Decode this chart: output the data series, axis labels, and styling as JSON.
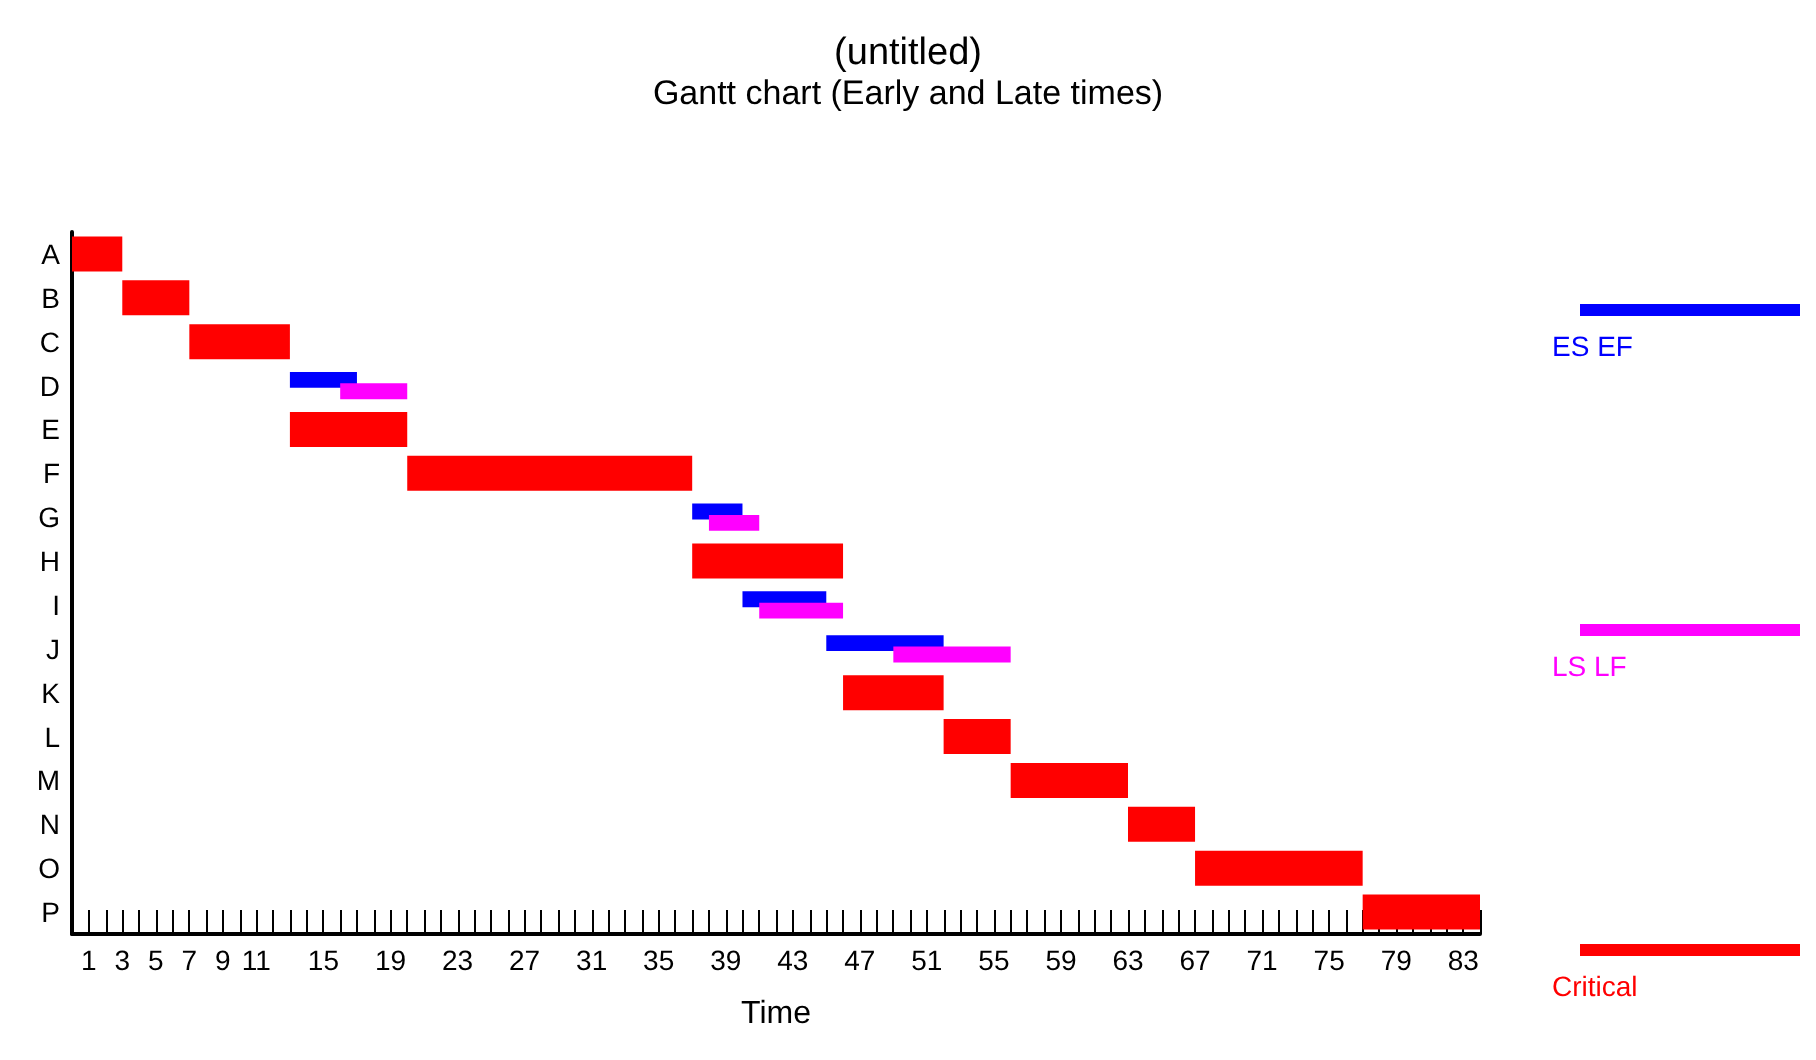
{
  "chart_data": {
    "type": "bar",
    "orientation": "horizontal",
    "title": "(untitled)",
    "subtitle": "Gantt chart (Early and Late times)",
    "xlabel": "Time",
    "categories": [
      "A",
      "B",
      "C",
      "D",
      "E",
      "F",
      "G",
      "H",
      "I",
      "J",
      "K",
      "L",
      "M",
      "N",
      "O",
      "P"
    ],
    "series": [
      {
        "name": "ES EF",
        "color": "#0000ff",
        "base": [
          null,
          null,
          null,
          13,
          null,
          null,
          37,
          null,
          40,
          45,
          null,
          null,
          null,
          null,
          null,
          null
        ],
        "values": [
          null,
          null,
          null,
          4,
          null,
          null,
          3,
          null,
          5,
          7,
          null,
          null,
          null,
          null,
          null,
          null
        ]
      },
      {
        "name": "LS LF",
        "color": "#ff00ff",
        "base": [
          null,
          null,
          null,
          16,
          null,
          null,
          38,
          null,
          41,
          49,
          null,
          null,
          null,
          null,
          null,
          null
        ],
        "values": [
          null,
          null,
          null,
          4,
          null,
          null,
          3,
          null,
          5,
          7,
          null,
          null,
          null,
          null,
          null,
          null
        ]
      },
      {
        "name": "Critical",
        "color": "#ff0000",
        "base": [
          0,
          3,
          7,
          null,
          13,
          20,
          null,
          37,
          null,
          null,
          46,
          52,
          56,
          63,
          67,
          77
        ],
        "values": [
          3,
          4,
          6,
          null,
          7,
          17,
          null,
          9,
          null,
          null,
          6,
          4,
          7,
          4,
          10,
          7
        ]
      }
    ],
    "xlim": [
      0,
      84
    ],
    "xticks": [
      1,
      {
        "value": 2,
        "label": null
      },
      3,
      {
        "value": 4,
        "label": null
      },
      5,
      {
        "value": 6,
        "label": null
      },
      7,
      {
        "value": 8,
        "label": null
      },
      9,
      {
        "value": 10,
        "label": null
      },
      11,
      {
        "value": 12,
        "label": null
      },
      {
        "value": 13,
        "label": null
      },
      {
        "value": 14,
        "label": null
      },
      15,
      {
        "value": 16,
        "label": null
      },
      {
        "value": 17,
        "label": null
      },
      {
        "value": 18,
        "label": null
      },
      19,
      {
        "value": 20,
        "label": null
      },
      {
        "value": 21,
        "label": null
      },
      {
        "value": 22,
        "label": null
      },
      23,
      {
        "value": 24,
        "label": null
      },
      {
        "value": 25,
        "label": null
      },
      {
        "value": 26,
        "label": null
      },
      27,
      {
        "value": 28,
        "label": null
      },
      {
        "value": 29,
        "label": null
      },
      {
        "value": 30,
        "label": null
      },
      31,
      {
        "value": 32,
        "label": null
      },
      {
        "value": 33,
        "label": null
      },
      {
        "value": 34,
        "label": null
      },
      35,
      {
        "value": 36,
        "label": null
      },
      {
        "value": 37,
        "label": null
      },
      {
        "value": 38,
        "label": null
      },
      39,
      {
        "value": 40,
        "label": null
      },
      {
        "value": 41,
        "label": null
      },
      {
        "value": 42,
        "label": null
      },
      43,
      {
        "value": 44,
        "label": null
      },
      {
        "value": 45,
        "label": null
      },
      {
        "value": 46,
        "label": null
      },
      47,
      {
        "value": 48,
        "label": null
      },
      {
        "value": 49,
        "label": null
      },
      {
        "value": 50,
        "label": null
      },
      51,
      {
        "value": 52,
        "label": null
      },
      {
        "value": 53,
        "label": null
      },
      {
        "value": 54,
        "label": null
      },
      55,
      {
        "value": 56,
        "label": null
      },
      {
        "value": 57,
        "label": null
      },
      {
        "value": 58,
        "label": null
      },
      59,
      {
        "value": 60,
        "label": null
      },
      {
        "value": 61,
        "label": null
      },
      {
        "value": 62,
        "label": null
      },
      63,
      {
        "value": 64,
        "label": null
      },
      {
        "value": 65,
        "label": null
      },
      {
        "value": 66,
        "label": null
      },
      67,
      {
        "value": 68,
        "label": null
      },
      {
        "value": 69,
        "label": null
      },
      {
        "value": 70,
        "label": null
      },
      71,
      {
        "value": 72,
        "label": null
      },
      {
        "value": 73,
        "label": null
      },
      {
        "value": 74,
        "label": null
      },
      75,
      {
        "value": 76,
        "label": null
      },
      {
        "value": 77,
        "label": null
      },
      {
        "value": 78,
        "label": null
      },
      79,
      {
        "value": 80,
        "label": null
      },
      {
        "value": 81,
        "label": null
      },
      {
        "value": 82,
        "label": null
      },
      83,
      {
        "value": 84,
        "label": null
      }
    ],
    "grid": false,
    "legend": "right"
  }
}
